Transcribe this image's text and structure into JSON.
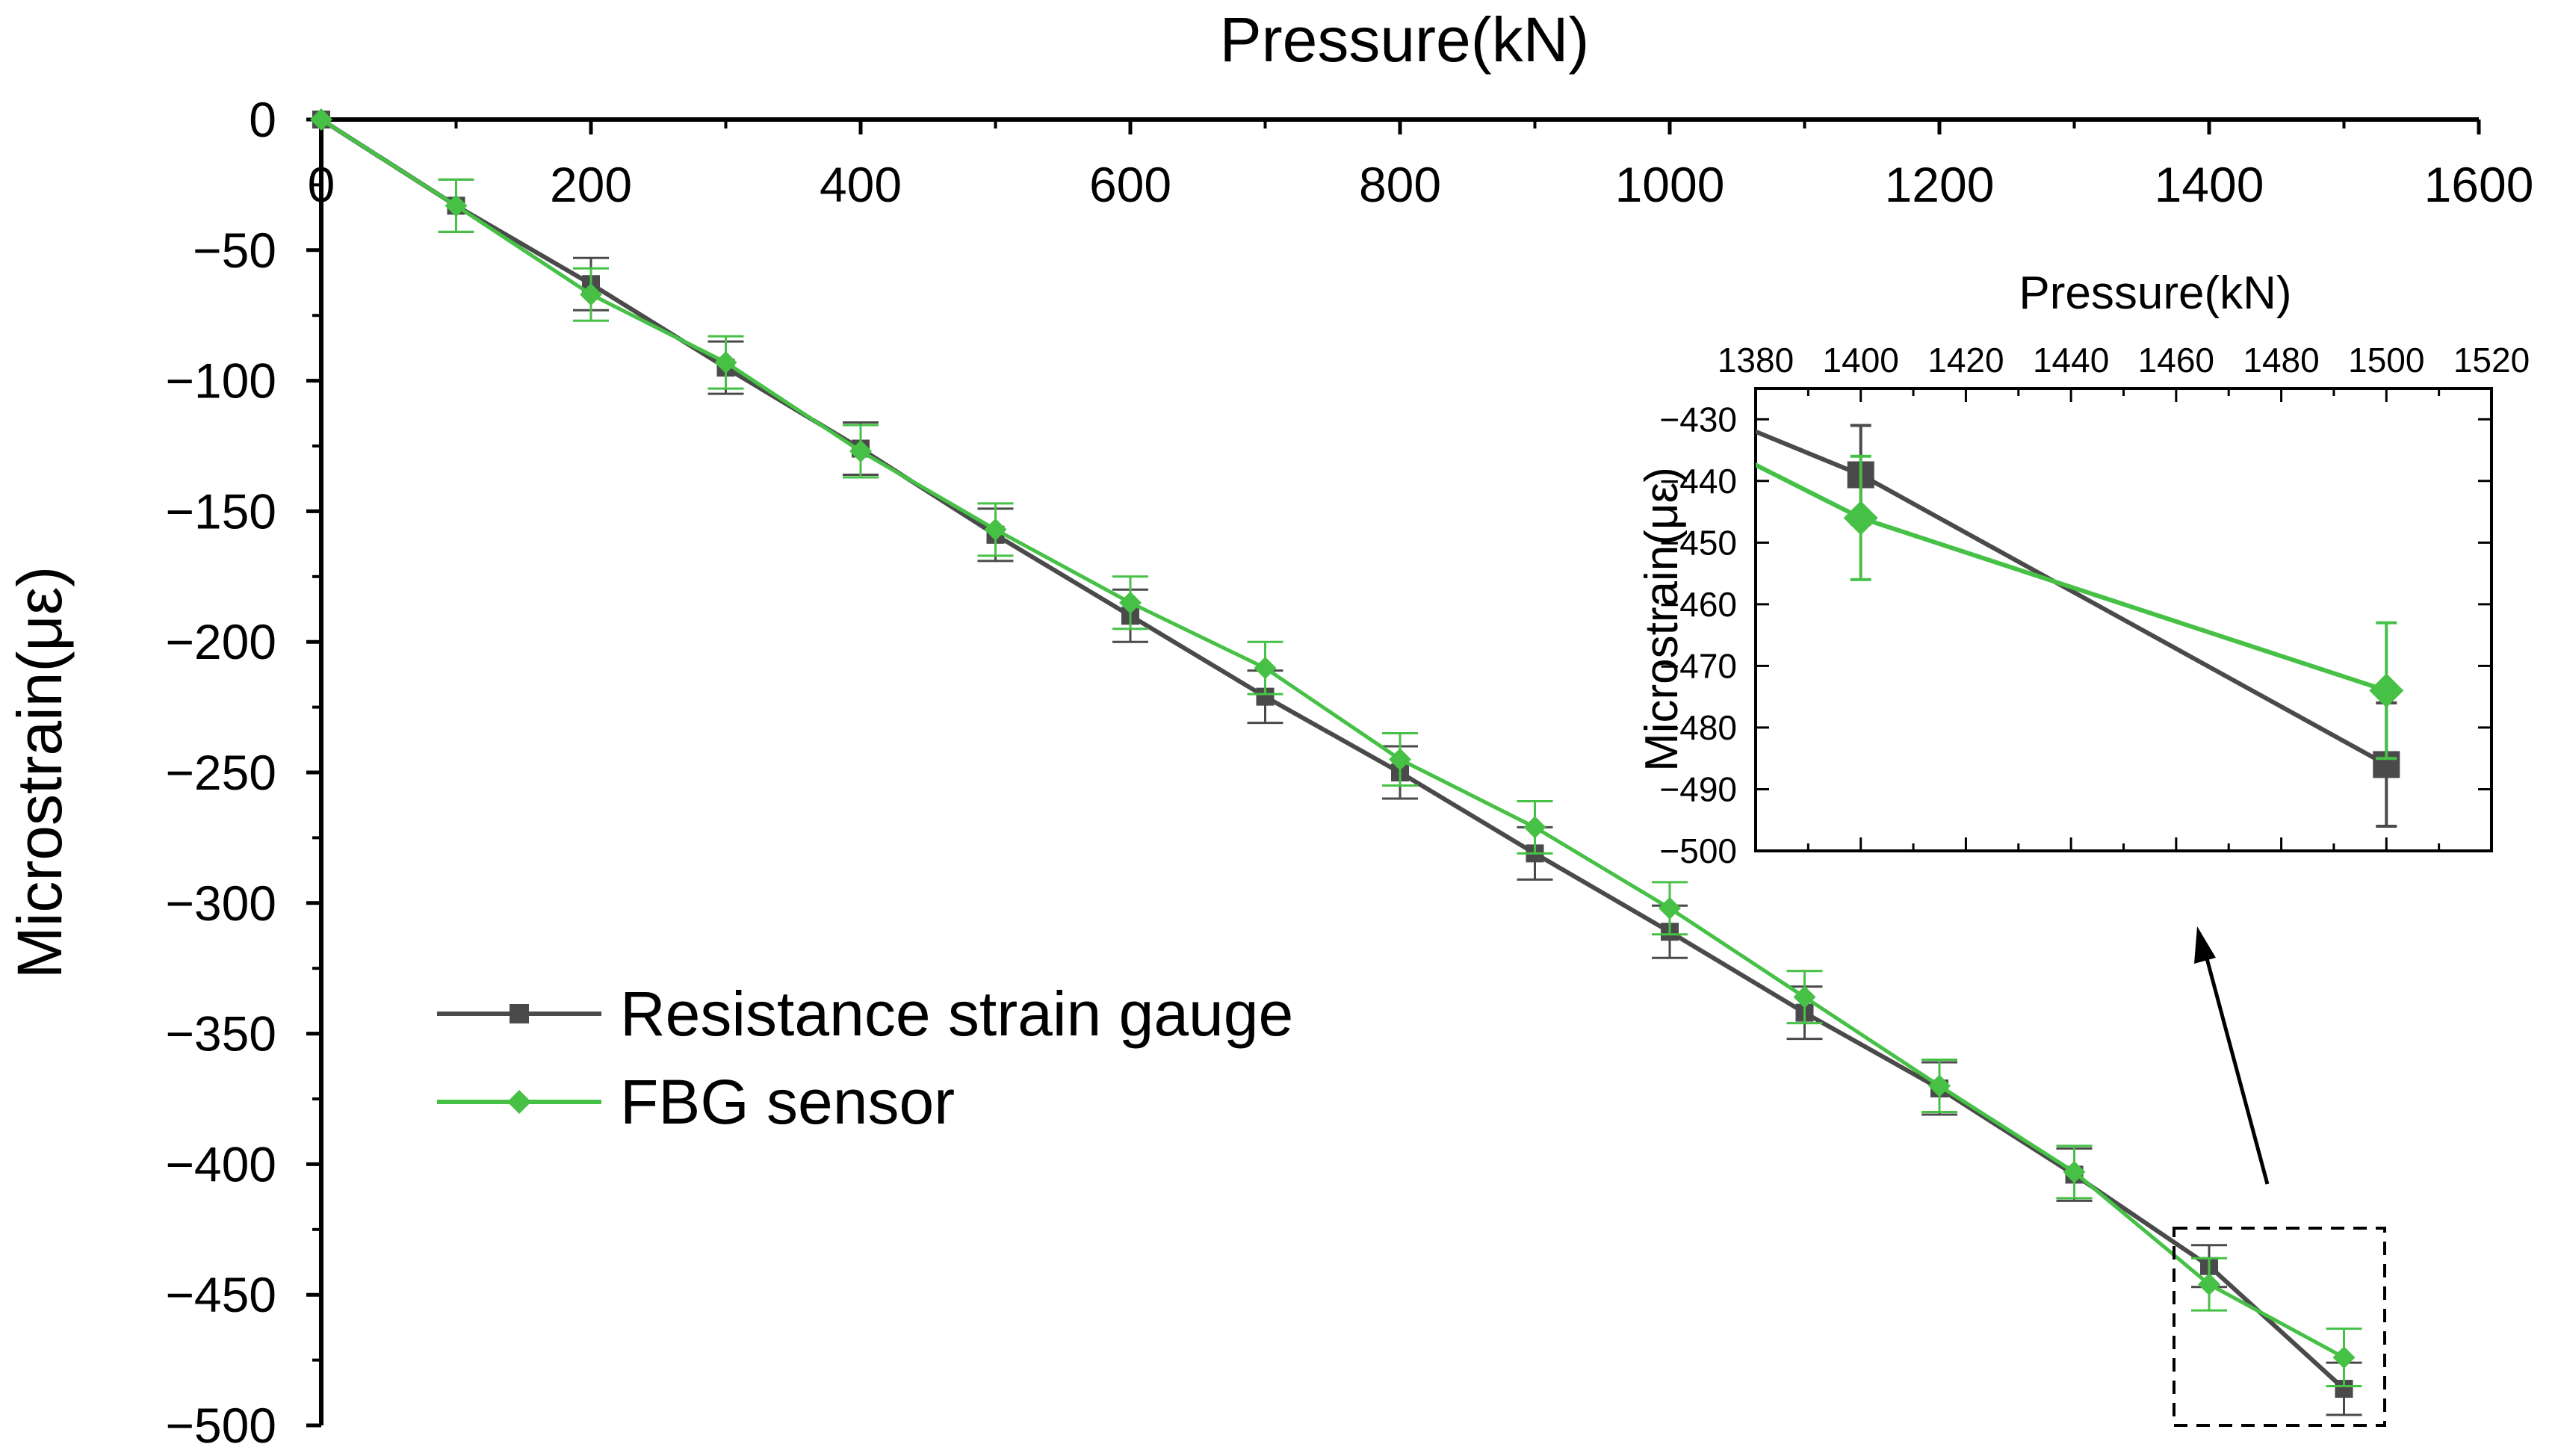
{
  "chart_data": {
    "type": "line",
    "xlabel": "Pressure(kN)",
    "ylabel": "Microstrain(με)",
    "xlim": [
      0,
      1600
    ],
    "ylim": [
      -500,
      0
    ],
    "x_axis_position": "top",
    "xticks": [
      "0",
      "200",
      "400",
      "600",
      "800",
      "1000",
      "1200",
      "1400",
      "1600"
    ],
    "yticks": [
      "0",
      "-50",
      "-100",
      "-150",
      "-200",
      "-250",
      "-300",
      "-350",
      "-400",
      "-450",
      "-500"
    ],
    "legend": {
      "position": "lower-left",
      "entries": [
        "Resistance strain gauge",
        "FBG sensor"
      ]
    },
    "series": [
      {
        "name": "Resistance strain gauge",
        "color": "#4a4a4a",
        "marker": "square",
        "x": [
          0,
          100,
          200,
          300,
          400,
          500,
          600,
          700,
          800,
          900,
          1000,
          1100,
          1200,
          1300,
          1400,
          1500
        ],
        "y": [
          0,
          -33,
          -63,
          -95,
          -126,
          -159,
          -190,
          -221,
          -250,
          -281,
          -311,
          -342,
          -371,
          -404,
          -439,
          -486
        ],
        "error": [
          0,
          10,
          10,
          10,
          10,
          10,
          10,
          10,
          10,
          10,
          10,
          10,
          10,
          10,
          8,
          10
        ]
      },
      {
        "name": "FBG sensor",
        "color": "#46c146",
        "marker": "diamond",
        "x": [
          0,
          100,
          200,
          300,
          400,
          500,
          600,
          700,
          800,
          900,
          1000,
          1100,
          1200,
          1300,
          1400,
          1500
        ],
        "y": [
          0,
          -33,
          -67,
          -93,
          -127,
          -157,
          -185,
          -210,
          -245,
          -271,
          -302,
          -336,
          -370,
          -403,
          -446,
          -474
        ],
        "error": [
          0,
          10,
          10,
          10,
          10,
          10,
          10,
          10,
          10,
          10,
          10,
          10,
          10,
          10,
          10,
          11
        ]
      }
    ],
    "zoom_box": {
      "x_range": [
        1380,
        1520
      ],
      "y_range": [
        -500,
        -425
      ]
    },
    "inset": {
      "xlabel": "Pressure(kN)",
      "ylabel": "Microstrain(με)",
      "xlim": [
        1380,
        1520
      ],
      "ylim": [
        -500,
        -425
      ],
      "xticks": [
        "1380",
        "1400",
        "1420",
        "1440",
        "1460",
        "1480",
        "1500",
        "1520"
      ],
      "yticks": [
        "-430",
        "-440",
        "-450",
        "-460",
        "-470",
        "-480",
        "-490",
        "-500"
      ]
    }
  }
}
